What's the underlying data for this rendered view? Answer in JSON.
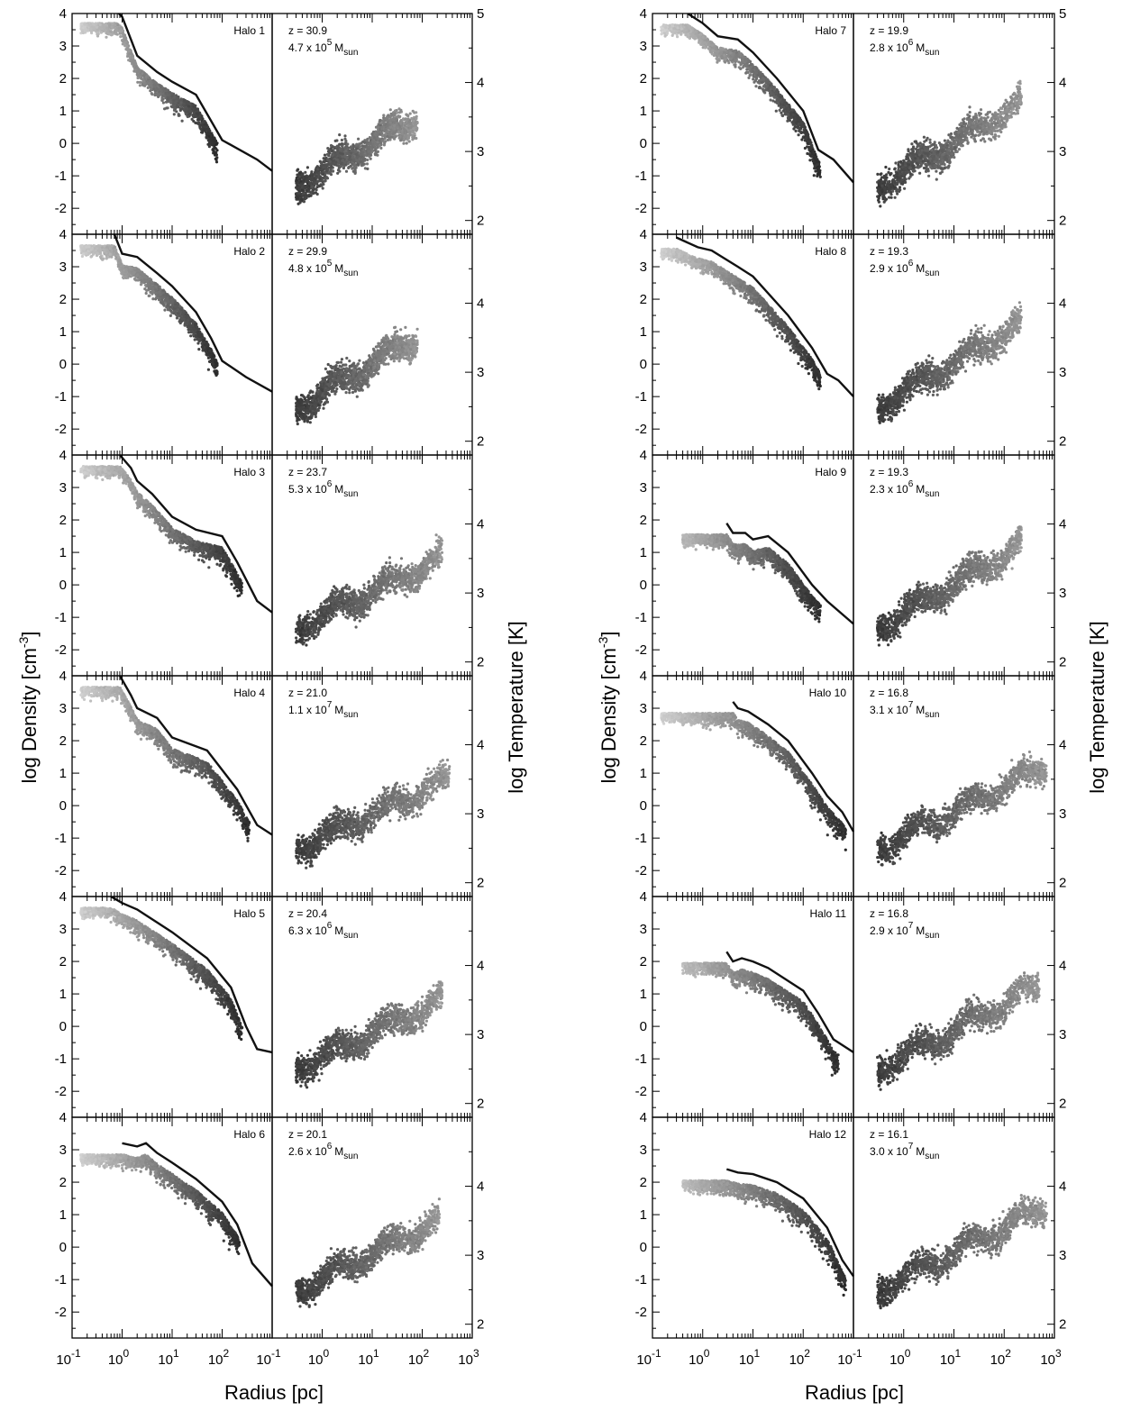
{
  "figure": {
    "ylabel_left": "log Density [cm",
    "ylabel_left_sup": "-3",
    "ylabel_left_end": "]",
    "ylabel_right": "log Temperature [K]",
    "xlabel": "Radius [pc]"
  },
  "chart_data": {
    "type": "scatter",
    "x_axis": {
      "scale": "log",
      "range": [
        0.1,
        1000
      ],
      "ticks": [
        "10",
        "10",
        "10",
        "10",
        "10"
      ],
      "tick_exponents": [
        "-1",
        "0",
        "1",
        "2",
        "3"
      ],
      "tick_values": [
        0.1,
        1,
        10,
        100,
        1000
      ]
    },
    "density_axis": {
      "range": [
        -2.8,
        4
      ],
      "ticks": [
        "-2",
        "-1",
        "0",
        "1",
        "2",
        "3",
        "4"
      ]
    },
    "temperature_axis": {
      "range": [
        1.8,
        5
      ],
      "ticks": [
        "2",
        "3",
        "4",
        "5"
      ]
    },
    "halos": [
      {
        "label": "Halo 1",
        "z": "z = 30.9",
        "mass_text": "4.7 x 10",
        "mass_exp": "5",
        "mass_unit": "M",
        "mass_sub": "sun",
        "rmax": 80,
        "profile": [
          [
            0.8,
            4.05
          ],
          [
            1,
            3.9
          ],
          [
            1.5,
            3.2
          ],
          [
            2,
            2.7
          ],
          [
            5,
            2.2
          ],
          [
            10,
            1.9
          ],
          [
            30,
            1.5
          ],
          [
            100,
            0.1
          ],
          [
            500,
            -0.5
          ],
          [
            1000,
            -0.85
          ]
        ]
      },
      {
        "label": "Halo 2",
        "z": "z = 29.9",
        "mass_text": "4.8 x 10",
        "mass_exp": "5",
        "mass_unit": "M",
        "mass_sub": "sun",
        "rmax": 80,
        "profile": [
          [
            0.7,
            4.0
          ],
          [
            1,
            3.4
          ],
          [
            2,
            3.3
          ],
          [
            5,
            2.8
          ],
          [
            10,
            2.4
          ],
          [
            30,
            1.6
          ],
          [
            60,
            0.8
          ],
          [
            100,
            0.1
          ],
          [
            300,
            -0.4
          ],
          [
            1000,
            -0.85
          ]
        ]
      },
      {
        "label": "Halo 3",
        "z": "z = 23.7",
        "mass_text": "5.3 x 10",
        "mass_exp": "6",
        "mass_unit": "M",
        "mass_sub": "sun",
        "rmax": 250,
        "profile": [
          [
            0.9,
            4.0
          ],
          [
            1.5,
            3.6
          ],
          [
            2,
            3.2
          ],
          [
            4,
            2.8
          ],
          [
            10,
            2.1
          ],
          [
            30,
            1.7
          ],
          [
            100,
            1.5
          ],
          [
            200,
            0.7
          ],
          [
            500,
            -0.5
          ],
          [
            1000,
            -0.85
          ]
        ]
      },
      {
        "label": "Halo 4",
        "z": "z = 21.0",
        "mass_text": "1.1 x 10",
        "mass_exp": "7",
        "mass_unit": "M",
        "mass_sub": "sun",
        "rmax": 350,
        "profile": [
          [
            0.9,
            4.0
          ],
          [
            1.5,
            3.4
          ],
          [
            2,
            3.0
          ],
          [
            5,
            2.7
          ],
          [
            10,
            2.1
          ],
          [
            50,
            1.7
          ],
          [
            200,
            0.5
          ],
          [
            500,
            -0.6
          ],
          [
            1000,
            -0.9
          ]
        ]
      },
      {
        "label": "Halo 5",
        "z": "z = 20.4",
        "mass_text": "6.3 x 10",
        "mass_exp": "6",
        "mass_unit": "M",
        "mass_sub": "sun",
        "rmax": 250,
        "profile": [
          [
            0.6,
            4.0
          ],
          [
            1,
            3.8
          ],
          [
            2,
            3.6
          ],
          [
            5,
            3.2
          ],
          [
            10,
            2.9
          ],
          [
            50,
            2.1
          ],
          [
            150,
            1.2
          ],
          [
            300,
            0.0
          ],
          [
            500,
            -0.7
          ],
          [
            1000,
            -0.8
          ]
        ]
      },
      {
        "label": "Halo 6",
        "z": "z = 20.1",
        "mass_text": "2.6 x 10",
        "mass_exp": "6",
        "mass_unit": "M",
        "mass_sub": "sun",
        "rmax": 220,
        "profile": [
          [
            1.0,
            3.2
          ],
          [
            2,
            3.1
          ],
          [
            3,
            3.2
          ],
          [
            5,
            2.9
          ],
          [
            10,
            2.6
          ],
          [
            30,
            2.1
          ],
          [
            100,
            1.4
          ],
          [
            200,
            0.7
          ],
          [
            400,
            -0.5
          ],
          [
            1000,
            -1.2
          ]
        ]
      },
      {
        "label": "Halo 7",
        "z": "z = 19.9",
        "mass_text": "2.8 x 10",
        "mass_exp": "6",
        "mass_unit": "M",
        "mass_sub": "sun",
        "rmax": 220,
        "profile": [
          [
            0.5,
            4.0
          ],
          [
            1,
            3.7
          ],
          [
            2,
            3.3
          ],
          [
            5,
            3.2
          ],
          [
            10,
            2.8
          ],
          [
            30,
            2.0
          ],
          [
            100,
            1.0
          ],
          [
            200,
            -0.2
          ],
          [
            400,
            -0.5
          ],
          [
            1000,
            -1.2
          ]
        ]
      },
      {
        "label": "Halo 8",
        "z": "z = 19.3",
        "mass_text": "2.9 x 10",
        "mass_exp": "6",
        "mass_unit": "M",
        "mass_sub": "sun",
        "rmax": 220,
        "profile": [
          [
            0.3,
            3.9
          ],
          [
            0.8,
            3.6
          ],
          [
            1.5,
            3.5
          ],
          [
            5,
            3.0
          ],
          [
            10,
            2.7
          ],
          [
            50,
            1.5
          ],
          [
            150,
            0.5
          ],
          [
            300,
            -0.3
          ],
          [
            500,
            -0.5
          ],
          [
            1000,
            -1.0
          ]
        ]
      },
      {
        "label": "Halo 9",
        "z": "z = 19.3",
        "mass_text": "2.3 x 10",
        "mass_exp": "6",
        "mass_unit": "M",
        "mass_sub": "sun",
        "rmax": 220,
        "profile": [
          [
            3,
            1.9
          ],
          [
            4,
            1.6
          ],
          [
            7,
            1.6
          ],
          [
            10,
            1.4
          ],
          [
            20,
            1.5
          ],
          [
            50,
            1.0
          ],
          [
            150,
            0.0
          ],
          [
            300,
            -0.5
          ],
          [
            1000,
            -1.2
          ]
        ]
      },
      {
        "label": "Halo 10",
        "z": "z = 16.8",
        "mass_text": "3.1 x 10",
        "mass_exp": "7",
        "mass_unit": "M",
        "mass_sub": "sun",
        "rmax": 700,
        "profile": [
          [
            4,
            3.2
          ],
          [
            5,
            3.0
          ],
          [
            8,
            2.9
          ],
          [
            20,
            2.5
          ],
          [
            50,
            2.0
          ],
          [
            150,
            1.0
          ],
          [
            300,
            0.3
          ],
          [
            600,
            -0.2
          ],
          [
            1000,
            -0.8
          ]
        ]
      },
      {
        "label": "Halo 11",
        "z": "z = 16.8",
        "mass_text": "2.9 x 10",
        "mass_exp": "7",
        "mass_unit": "M",
        "mass_sub": "sun",
        "rmax": 500,
        "profile": [
          [
            3,
            2.3
          ],
          [
            4,
            2.0
          ],
          [
            6,
            2.1
          ],
          [
            10,
            2.0
          ],
          [
            20,
            1.8
          ],
          [
            100,
            1.1
          ],
          [
            200,
            0.4
          ],
          [
            400,
            -0.4
          ],
          [
            1000,
            -0.8
          ]
        ]
      },
      {
        "label": "Halo 12",
        "z": "z = 16.1",
        "mass_text": "3.0 x 10",
        "mass_exp": "7",
        "mass_unit": "M",
        "mass_sub": "sun",
        "rmax": 700,
        "profile": [
          [
            3,
            2.4
          ],
          [
            5,
            2.3
          ],
          [
            10,
            2.25
          ],
          [
            30,
            2.0
          ],
          [
            100,
            1.5
          ],
          [
            300,
            0.6
          ],
          [
            600,
            -0.4
          ],
          [
            1000,
            -0.9
          ]
        ]
      }
    ]
  }
}
